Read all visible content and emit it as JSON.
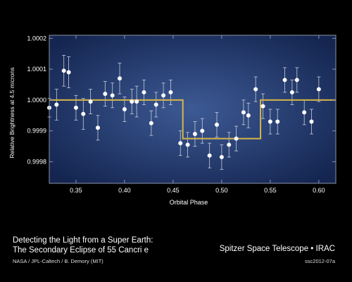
{
  "caption": {
    "title_line1": "Detecting the Light from a Super Earth:",
    "title_line2": "The Secondary Eclipse of 55 Cancri e",
    "credit": "NASA / JPL-Caltech / B. Demory (MIT)",
    "telescope": "Spitzer Space Telescope • IRAC",
    "code": "ssc2012-07a"
  },
  "colors": {
    "panel_center": "#3d5a95",
    "panel_edge": "#142550",
    "model_line": "#d6b548",
    "points": "#ffffff",
    "error_bars": "#c8ccd8"
  },
  "chart_data": {
    "type": "scatter",
    "xlabel": "Orbital Phase",
    "ylabel": "Relative Brightness at 4.5 microns",
    "xlim": [
      0.3225,
      0.6175
    ],
    "ylim": [
      0.99973,
      1.00021
    ],
    "x_ticks": [
      0.35,
      0.4,
      0.45,
      0.5,
      0.55,
      0.6
    ],
    "x_tick_labels": [
      "0.35",
      "0.40",
      "0.45",
      "0.50",
      "0.55",
      "0.60"
    ],
    "y_ticks": [
      0.9998,
      0.9999,
      1.0,
      1.0001,
      1.0002
    ],
    "y_tick_labels": [
      "0.9998",
      "0.9999",
      "1.0000",
      "1.0001",
      "1.0002"
    ],
    "grid": false,
    "series": [
      {
        "points": [
          {
            "x": 0.3225,
            "y": 0.999975,
            "err": 3e-05
          },
          {
            "x": 0.33,
            "y": 0.999985,
            "err": 5e-05
          },
          {
            "x": 0.3375,
            "y": 1.000095,
            "err": 5e-05
          },
          {
            "x": 0.3425,
            "y": 1.00009,
            "err": 5e-05
          },
          {
            "x": 0.35,
            "y": 0.999975,
            "err": 4e-05
          },
          {
            "x": 0.3575,
            "y": 0.999955,
            "err": 5e-05
          },
          {
            "x": 0.365,
            "y": 0.999995,
            "err": 4e-05
          },
          {
            "x": 0.3725,
            "y": 0.99991,
            "err": 4e-05
          },
          {
            "x": 0.38,
            "y": 1.00002,
            "err": 4e-05
          },
          {
            "x": 0.3875,
            "y": 1.000015,
            "err": 4e-05
          },
          {
            "x": 0.395,
            "y": 1.00007,
            "err": 5e-05
          },
          {
            "x": 0.4,
            "y": 0.99997,
            "err": 4e-05
          },
          {
            "x": 0.4075,
            "y": 0.999995,
            "err": 4e-05
          },
          {
            "x": 0.4125,
            "y": 0.999995,
            "err": 5e-05
          },
          {
            "x": 0.42,
            "y": 1.000025,
            "err": 4e-05
          },
          {
            "x": 0.4275,
            "y": 0.999925,
            "err": 4e-05
          },
          {
            "x": 0.4325,
            "y": 0.999985,
            "err": 4e-05
          },
          {
            "x": 0.44,
            "y": 1.000015,
            "err": 4e-05
          },
          {
            "x": 0.4475,
            "y": 1.000025,
            "err": 4e-05
          },
          {
            "x": 0.4575,
            "y": 0.99986,
            "err": 4e-05
          },
          {
            "x": 0.465,
            "y": 0.999855,
            "err": 4e-05
          },
          {
            "x": 0.4725,
            "y": 0.99989,
            "err": 4e-05
          },
          {
            "x": 0.48,
            "y": 0.9999,
            "err": 4e-05
          },
          {
            "x": 0.4875,
            "y": 0.99982,
            "err": 4e-05
          },
          {
            "x": 0.495,
            "y": 0.99992,
            "err": 4e-05
          },
          {
            "x": 0.5,
            "y": 0.999815,
            "err": 4e-05
          },
          {
            "x": 0.5075,
            "y": 0.999855,
            "err": 4e-05
          },
          {
            "x": 0.515,
            "y": 0.999875,
            "err": 4e-05
          },
          {
            "x": 0.5225,
            "y": 0.99996,
            "err": 4e-05
          },
          {
            "x": 0.5275,
            "y": 0.99995,
            "err": 4e-05
          },
          {
            "x": 0.535,
            "y": 1.000035,
            "err": 4e-05
          },
          {
            "x": 0.5425,
            "y": 0.99998,
            "err": 4e-05
          },
          {
            "x": 0.55,
            "y": 0.99993,
            "err": 4e-05
          },
          {
            "x": 0.5575,
            "y": 0.99993,
            "err": 4e-05
          },
          {
            "x": 0.565,
            "y": 1.000065,
            "err": 4e-05
          },
          {
            "x": 0.5725,
            "y": 1.000025,
            "err": 4e-05
          },
          {
            "x": 0.5775,
            "y": 1.000065,
            "err": 4e-05
          },
          {
            "x": 0.585,
            "y": 0.99996,
            "err": 4e-05
          },
          {
            "x": 0.5925,
            "y": 0.99993,
            "err": 4e-05
          },
          {
            "x": 0.6,
            "y": 1.000035,
            "err": 4e-05
          }
        ]
      }
    ],
    "model_line": {
      "x": [
        0.3225,
        0.46,
        0.46,
        0.54,
        0.54,
        0.6175
      ],
      "y": [
        1.0,
        1.0,
        0.999875,
        0.999875,
        1.0,
        1.0
      ]
    }
  }
}
